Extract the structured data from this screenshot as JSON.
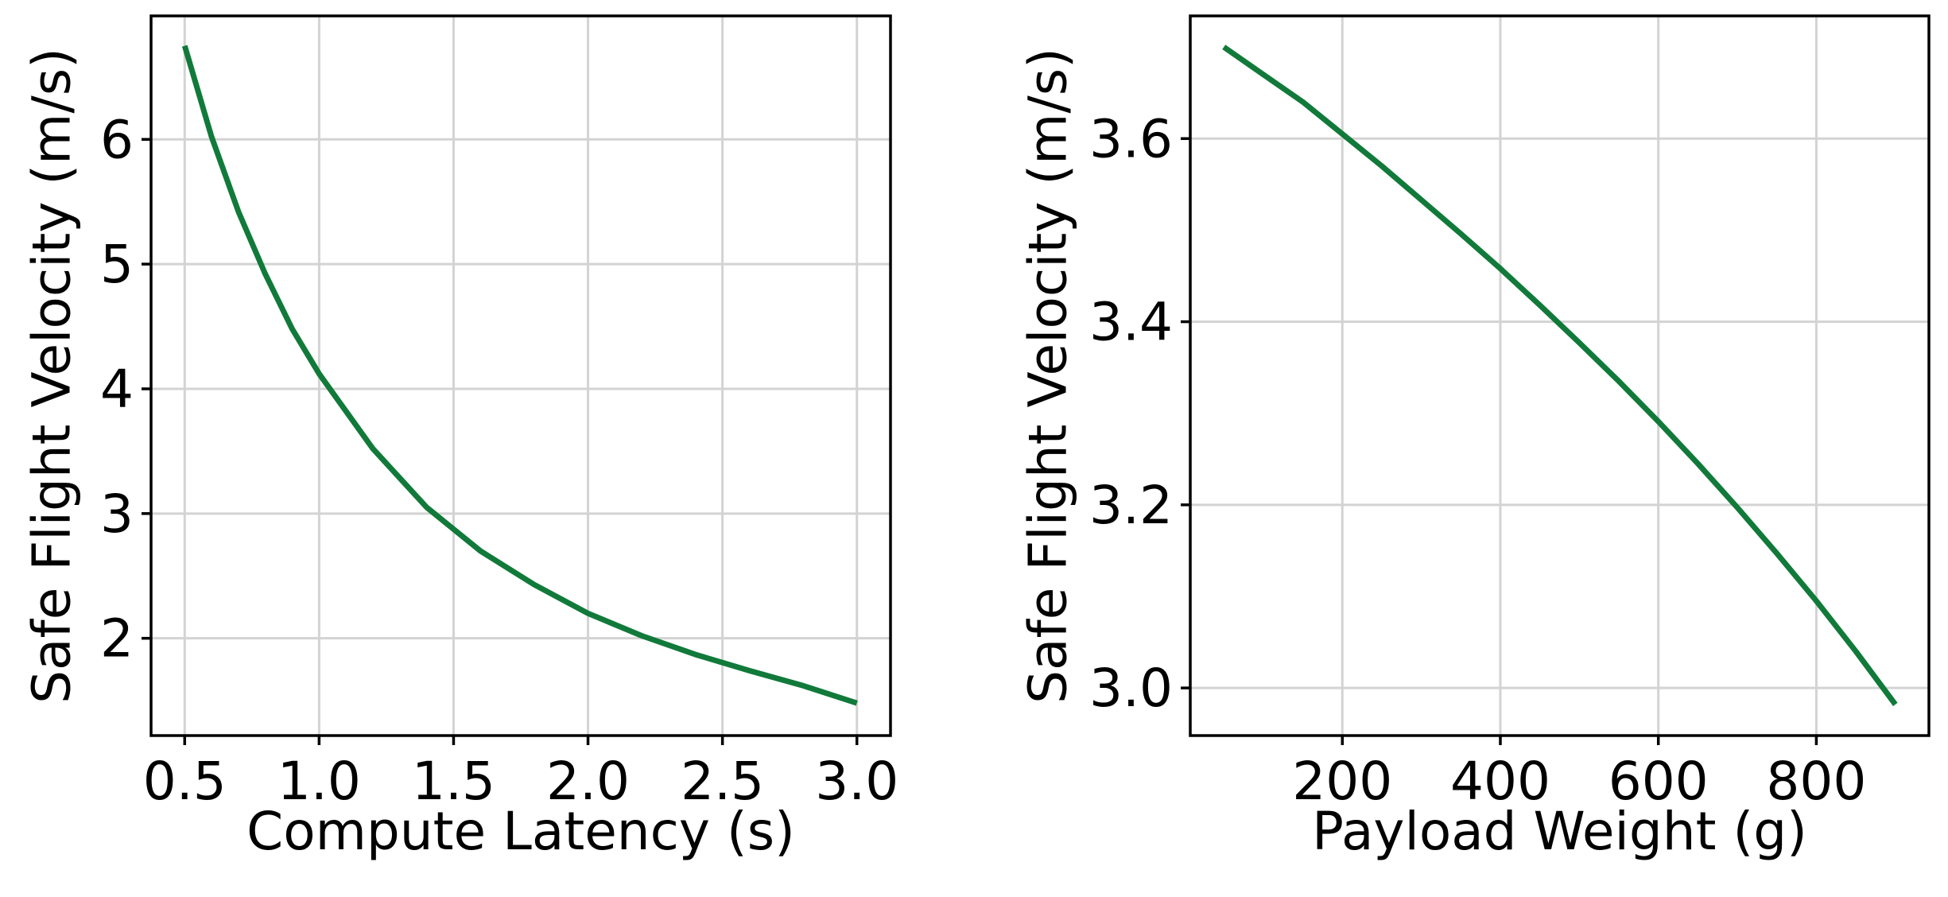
{
  "chart_data": [
    {
      "type": "line",
      "xlabel": "Compute Latency (s)",
      "ylabel": "Safe Flight Velocity (m/s)",
      "xlim": [
        0.375,
        3.125
      ],
      "ylim": [
        1.22,
        6.99
      ],
      "xticks": [
        0.5,
        1.0,
        1.5,
        2.0,
        2.5,
        3.0
      ],
      "xtick_labels": [
        "0.5",
        "1.0",
        "1.5",
        "2.0",
        "2.5",
        "3.0"
      ],
      "yticks": [
        2,
        3,
        4,
        5,
        6
      ],
      "ytick_labels": [
        "2",
        "3",
        "4",
        "5",
        "6"
      ],
      "grid": true,
      "color": "#117a3a",
      "series": [
        {
          "x": [
            0.5,
            0.6,
            0.7,
            0.8,
            0.9,
            1.0,
            1.2,
            1.4,
            1.6,
            1.8,
            2.0,
            2.2,
            2.4,
            2.6,
            2.8,
            3.0
          ],
          "y": [
            6.75,
            6.02,
            5.42,
            4.92,
            4.48,
            4.12,
            3.52,
            3.05,
            2.7,
            2.43,
            2.2,
            2.02,
            1.87,
            1.74,
            1.62,
            1.48
          ]
        }
      ]
    },
    {
      "type": "line",
      "xlabel": "Payload Weight (g)",
      "ylabel": "Safe Flight Velocity (m/s)",
      "xlim": [
        7.5,
        942.5
      ],
      "ylim": [
        2.948,
        3.734
      ],
      "xticks": [
        200,
        400,
        600,
        800
      ],
      "xtick_labels": [
        "200",
        "400",
        "600",
        "800"
      ],
      "yticks": [
        3.0,
        3.2,
        3.4,
        3.6
      ],
      "ytick_labels": [
        "3.0",
        "3.2",
        "3.4",
        "3.6"
      ],
      "grid": true,
      "color": "#117a3a",
      "series": [
        {
          "x": [
            50,
            100,
            150,
            200,
            250,
            300,
            350,
            400,
            450,
            500,
            550,
            600,
            650,
            700,
            750,
            800,
            850,
            900
          ],
          "y": [
            3.7,
            3.67,
            3.64,
            3.605,
            3.57,
            3.533,
            3.496,
            3.458,
            3.418,
            3.377,
            3.335,
            3.291,
            3.245,
            3.197,
            3.147,
            3.095,
            3.04,
            2.982
          ]
        }
      ]
    }
  ]
}
